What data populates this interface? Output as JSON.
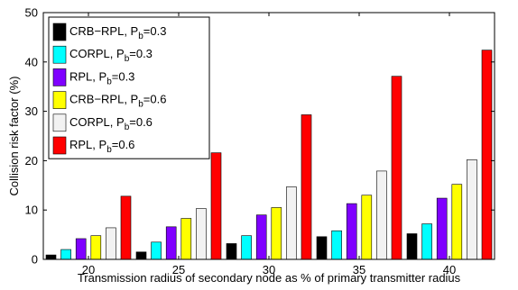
{
  "chart_data": {
    "type": "bar",
    "categories": [
      "20",
      "25",
      "30",
      "35",
      "40"
    ],
    "series": [
      {
        "name": "CRB−RPL, P",
        "name_sub": "b",
        "name_suffix": "=0.3",
        "color": "#000000",
        "values": [
          0.9,
          1.5,
          3.2,
          4.6,
          5.2
        ]
      },
      {
        "name": "CORPL, P",
        "name_sub": "b",
        "name_suffix": "=0.3",
        "color": "#00ffff",
        "values": [
          2.0,
          3.5,
          4.8,
          5.8,
          7.2
        ]
      },
      {
        "name": "RPL, P",
        "name_sub": "b",
        "name_suffix": "=0.3",
        "color": "#7f00ff",
        "values": [
          4.2,
          6.6,
          9.0,
          11.3,
          12.4
        ]
      },
      {
        "name": "CRB−RPL, P",
        "name_sub": "b",
        "name_suffix": "=0.6",
        "color": "#ffff00",
        "values": [
          4.8,
          8.3,
          10.5,
          13.0,
          15.2
        ]
      },
      {
        "name": "CORPL, P",
        "name_sub": "b",
        "name_suffix": "=0.6",
        "color": "#f2f2f2",
        "values": [
          6.4,
          10.3,
          14.7,
          17.9,
          20.2
        ]
      },
      {
        "name": "RPL, P",
        "name_sub": "b",
        "name_suffix": "=0.6",
        "color": "#ff0000",
        "values": [
          12.8,
          21.6,
          29.3,
          37.1,
          42.4
        ]
      }
    ],
    "title": "",
    "xlabel": "Transmission radius of secondary node as % of primary transmitter radius",
    "ylabel": "Collision risk factor (%)",
    "ylim": [
      0,
      50
    ],
    "yticks": [
      "0",
      "10",
      "20",
      "30",
      "40",
      "50"
    ],
    "grid": false,
    "legend": "top-left"
  }
}
